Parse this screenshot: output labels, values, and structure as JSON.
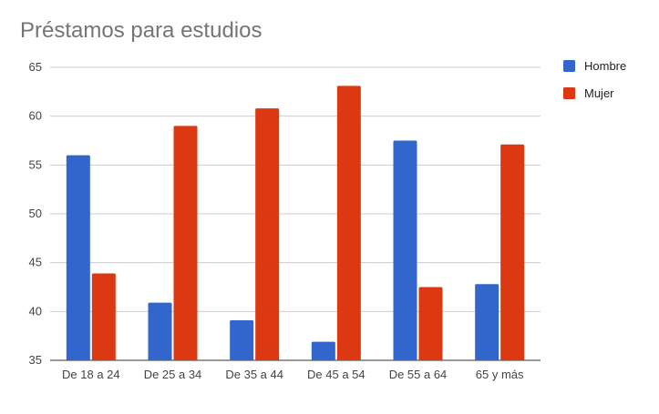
{
  "chart_data": {
    "type": "bar",
    "title": "Préstamos para estudios",
    "xlabel": "",
    "ylabel": "",
    "categories": [
      "De 18 a 24",
      "De 25 a 34",
      "De 35 a 44",
      "De 45 a 54",
      "De 55 a 64",
      "65 y más"
    ],
    "series": [
      {
        "name": "Hombre",
        "color": "#3366cc",
        "values": [
          56.0,
          40.9,
          39.1,
          36.9,
          57.5,
          42.8
        ]
      },
      {
        "name": "Mujer",
        "color": "#dc3912",
        "values": [
          43.9,
          59.0,
          60.8,
          63.1,
          42.5,
          57.1
        ]
      }
    ],
    "ylim": [
      35,
      65
    ],
    "yticks": [
      35,
      40,
      45,
      50,
      55,
      60,
      65
    ],
    "grid": true,
    "legend": "right"
  }
}
